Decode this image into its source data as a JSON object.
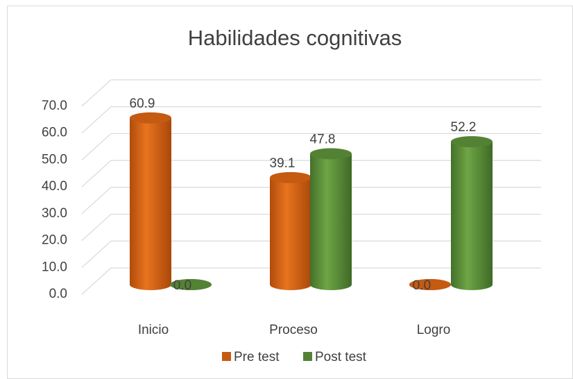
{
  "chart_data": {
    "type": "bar3d",
    "title": "Habilidades cognitivas",
    "categories": [
      "Inicio",
      "Proceso",
      "Logro"
    ],
    "series": [
      {
        "name": "Pre test",
        "color": "#c55a11",
        "values": [
          60.9,
          39.1,
          0.0
        ],
        "value_labels": [
          "60.9",
          "39.1",
          "0.0"
        ]
      },
      {
        "name": "Post test",
        "color": "#548235",
        "values": [
          0.0,
          47.8,
          52.2
        ],
        "value_labels": [
          "0.0",
          "47.8",
          "52.2"
        ]
      }
    ],
    "ylim": [
      0,
      70
    ],
    "yticks": [
      {
        "value": 0,
        "label": "0.0"
      },
      {
        "value": 10,
        "label": "10.0"
      },
      {
        "value": 20,
        "label": "20.0"
      },
      {
        "value": 30,
        "label": "30.0"
      },
      {
        "value": 40,
        "label": "40.0"
      },
      {
        "value": 50,
        "label": "50.0"
      },
      {
        "value": 60,
        "label": "60.0"
      },
      {
        "value": 70,
        "label": "70.0"
      }
    ],
    "grid": true,
    "legend": "bottom"
  }
}
